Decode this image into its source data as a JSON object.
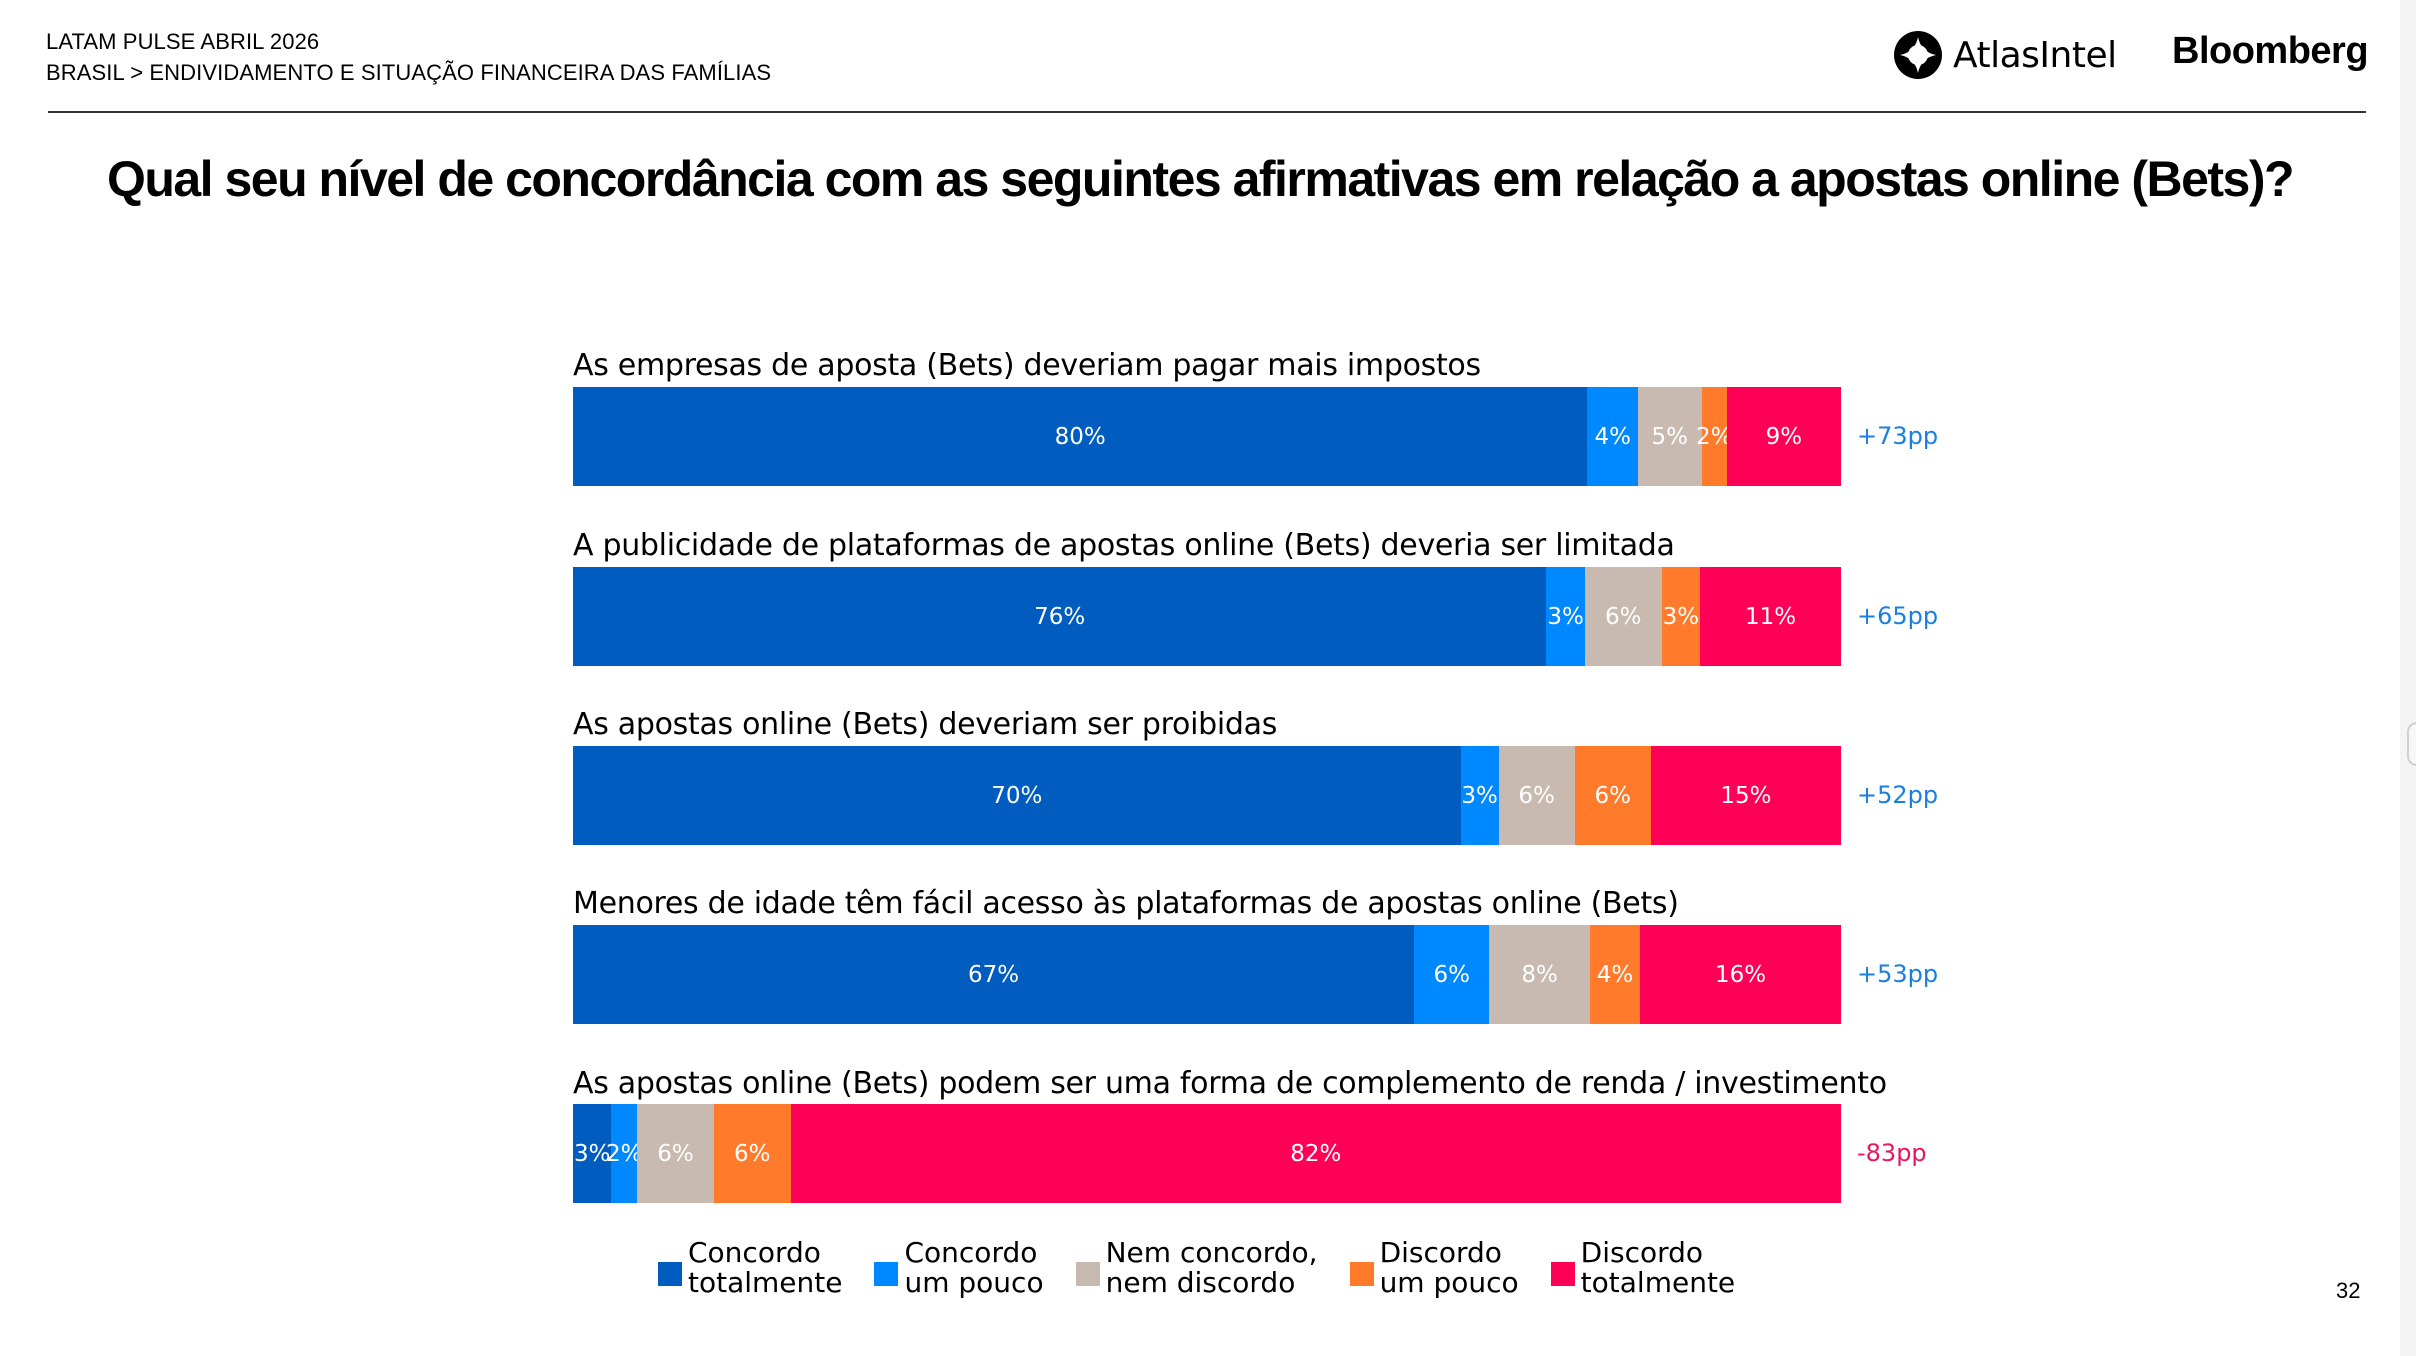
{
  "header": {
    "survey": "LATAM PULSE ABRIL 2026",
    "breadcrumb": "BRASIL > ENDIVIDAMENTO E SITUAÇÃO FINANCEIRA DAS FAMÍLIAS",
    "logos": {
      "atlas": "AtlasIntel",
      "bloomberg": "Bloomberg"
    }
  },
  "page_number": "32",
  "chart_data": {
    "type": "bar",
    "orientation": "horizontal-stacked-100",
    "title": "Qual seu nível de concordância com as seguintes afirmativas em relação a apostas online (Bets)?",
    "xlabel": "",
    "ylabel": "",
    "xlim": [
      0,
      100
    ],
    "grid": false,
    "legend_position": "bottom",
    "legend": [
      {
        "label_line1": "Concordo",
        "label_line2": "totalmente",
        "color": "#005CBF"
      },
      {
        "label_line1": "Concordo",
        "label_line2": "um pouco",
        "color": "#0088FF"
      },
      {
        "label_line1": "Nem concordo,",
        "label_line2": "nem discordo",
        "color": "#C8B9B1"
      },
      {
        "label_line1": "Discordo",
        "label_line2": "um pouco",
        "color": "#FF7A2B"
      },
      {
        "label_line1": "Discordo",
        "label_line2": "totalmente",
        "color": "#FF0057"
      }
    ],
    "categories": [
      "As empresas de aposta (Bets) deveriam pagar mais impostos",
      "A publicidade de plataformas de apostas online (Bets) deveria ser limitada",
      "As apostas online (Bets) deveriam ser proibidas",
      "Menores de idade têm fácil acesso às plataformas de apostas online (Bets)",
      "As apostas online (Bets) podem ser uma forma de complemento de renda / investimento"
    ],
    "series": [
      {
        "name": "Concordo totalmente",
        "values": [
          80,
          76,
          70,
          67,
          3
        ]
      },
      {
        "name": "Concordo um pouco",
        "values": [
          4,
          3,
          3,
          6,
          2
        ]
      },
      {
        "name": "Nem concordo, nem discordo",
        "values": [
          5,
          6,
          6,
          8,
          6
        ]
      },
      {
        "name": "Discordo um pouco",
        "values": [
          2,
          3,
          6,
          4,
          6
        ]
      },
      {
        "name": "Discordo totalmente",
        "values": [
          9,
          11,
          15,
          16,
          82
        ]
      }
    ],
    "net": [
      {
        "label": "+73pp",
        "value": 73,
        "color": "#1A7FE0"
      },
      {
        "label": "+65pp",
        "value": 65,
        "color": "#1A7FE0"
      },
      {
        "label": "+52pp",
        "value": 52,
        "color": "#1A7FE0"
      },
      {
        "label": "+53pp",
        "value": 53,
        "color": "#1A7FE0"
      },
      {
        "label": "-83pp",
        "value": -83,
        "color": "#E8175D"
      }
    ]
  }
}
